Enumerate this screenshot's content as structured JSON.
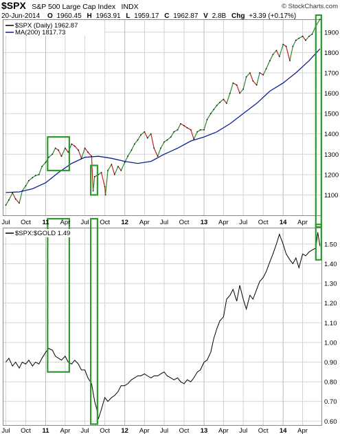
{
  "header": {
    "ticker": "$SPX",
    "name": "S&P 500 Large Cap Index",
    "exchange": "INDX",
    "date": "20-Jun-2014",
    "open_label": "O",
    "open": "1960.45",
    "high_label": "H",
    "high": "1963.91",
    "low_label": "L",
    "low": "1959.17",
    "close_label": "C",
    "close": "1962.87",
    "volume_label": "V",
    "volume": "2.8B",
    "change_label": "Chg",
    "change": "+3.39 (+0.17%)",
    "copyright": "© StockCharts.com"
  },
  "colors": {
    "price": "#000000",
    "up": "#2a8a2a",
    "down": "#c41f1f",
    "ma": "#0a1f8f",
    "ratio": "#000000",
    "highlight": "#2e9a2e",
    "grid": "#d4d4d4",
    "frame": "#888888"
  },
  "chart_data": [
    {
      "type": "line",
      "title": "$SPX (Daily) 1962.87",
      "series": [
        {
          "name": "$SPX (Daily) 1962.87",
          "x": [
            "2010-07-01",
            "2010-07-15",
            "2010-08-01",
            "2010-08-15",
            "2010-09-01",
            "2010-09-15",
            "2010-10-01",
            "2010-10-15",
            "2010-11-01",
            "2010-11-15",
            "2010-12-01",
            "2010-12-15",
            "2011-01-01",
            "2011-01-15",
            "2011-02-01",
            "2011-02-15",
            "2011-03-01",
            "2011-03-15",
            "2011-04-01",
            "2011-04-15",
            "2011-05-01",
            "2011-05-15",
            "2011-06-01",
            "2011-06-15",
            "2011-07-01",
            "2011-07-15",
            "2011-08-01",
            "2011-08-08",
            "2011-08-15",
            "2011-09-01",
            "2011-09-15",
            "2011-10-01",
            "2011-10-04",
            "2011-10-15",
            "2011-11-01",
            "2011-11-15",
            "2011-12-01",
            "2011-12-15",
            "2012-01-01",
            "2012-01-15",
            "2012-02-01",
            "2012-02-15",
            "2012-03-01",
            "2012-03-15",
            "2012-04-01",
            "2012-04-15",
            "2012-05-01",
            "2012-05-15",
            "2012-06-01",
            "2012-06-15",
            "2012-07-01",
            "2012-07-15",
            "2012-08-01",
            "2012-08-15",
            "2012-09-01",
            "2012-09-15",
            "2012-10-01",
            "2012-10-15",
            "2012-11-01",
            "2012-11-15",
            "2012-12-01",
            "2012-12-15",
            "2013-01-01",
            "2013-01-15",
            "2013-02-01",
            "2013-02-15",
            "2013-03-01",
            "2013-03-15",
            "2013-04-01",
            "2013-04-15",
            "2013-05-01",
            "2013-05-15",
            "2013-06-01",
            "2013-06-15",
            "2013-07-01",
            "2013-07-15",
            "2013-08-01",
            "2013-08-15",
            "2013-09-01",
            "2013-09-15",
            "2013-10-01",
            "2013-10-15",
            "2013-11-01",
            "2013-11-15",
            "2013-12-01",
            "2013-12-15",
            "2014-01-01",
            "2014-01-15",
            "2014-02-01",
            "2014-02-15",
            "2014-03-01",
            "2014-03-15",
            "2014-04-01",
            "2014-04-15",
            "2014-05-01",
            "2014-05-15",
            "2014-06-01",
            "2014-06-20"
          ],
          "y": [
            1050,
            1075,
            1110,
            1080,
            1060,
            1120,
            1145,
            1170,
            1185,
            1195,
            1200,
            1240,
            1260,
            1285,
            1300,
            1330,
            1320,
            1290,
            1330,
            1310,
            1350,
            1340,
            1320,
            1280,
            1330,
            1310,
            1290,
            1120,
            1190,
            1200,
            1210,
            1140,
            1100,
            1220,
            1250,
            1200,
            1240,
            1220,
            1260,
            1290,
            1320,
            1350,
            1370,
            1395,
            1410,
            1380,
            1400,
            1330,
            1290,
            1330,
            1360,
            1370,
            1385,
            1410,
            1420,
            1450,
            1440,
            1430,
            1420,
            1375,
            1410,
            1420,
            1420,
            1470,
            1500,
            1520,
            1540,
            1555,
            1570,
            1550,
            1600,
            1650,
            1640,
            1600,
            1620,
            1680,
            1700,
            1660,
            1640,
            1700,
            1690,
            1720,
            1760,
            1790,
            1810,
            1780,
            1840,
            1830,
            1760,
            1830,
            1860,
            1870,
            1880,
            1860,
            1880,
            1890,
            1930,
            1962.87
          ]
        },
        {
          "name": "MA(200) 1817.73",
          "x": [
            "2010-07-01",
            "2010-09-01",
            "2010-11-01",
            "2011-01-01",
            "2011-03-01",
            "2011-05-01",
            "2011-07-01",
            "2011-09-01",
            "2011-11-01",
            "2012-01-01",
            "2012-03-01",
            "2012-05-01",
            "2012-07-01",
            "2012-09-01",
            "2012-11-01",
            "2013-01-01",
            "2013-03-01",
            "2013-05-01",
            "2013-07-01",
            "2013-09-01",
            "2013-11-01",
            "2014-01-01",
            "2014-03-01",
            "2014-05-01",
            "2014-06-20"
          ],
          "y": [
            1112,
            1115,
            1130,
            1160,
            1210,
            1255,
            1285,
            1290,
            1280,
            1265,
            1255,
            1265,
            1300,
            1330,
            1365,
            1385,
            1410,
            1450,
            1500,
            1550,
            1610,
            1650,
            1700,
            1760,
            1817.73
          ]
        }
      ],
      "xlabel": "",
      "ylabel": "",
      "ylim": [
        1000,
        1960
      ],
      "yticks": [
        1100,
        1200,
        1300,
        1400,
        1500,
        1600,
        1700,
        1800,
        1900
      ],
      "xtick_labels": [
        "Jul",
        "Oct",
        "11",
        "Apr",
        "Jul",
        "Oct",
        "12",
        "Apr",
        "Jul",
        "Oct",
        "13",
        "Apr",
        "Jul",
        "Oct",
        "14",
        "Apr"
      ],
      "grid": true
    },
    {
      "type": "line",
      "title": "$SPX:$GOLD 1.49",
      "series": [
        {
          "name": "$SPX:$GOLD 1.49",
          "x": [
            "2010-07-01",
            "2010-07-15",
            "2010-08-01",
            "2010-08-15",
            "2010-09-01",
            "2010-09-15",
            "2010-10-01",
            "2010-10-15",
            "2010-11-01",
            "2010-11-15",
            "2010-12-01",
            "2010-12-15",
            "2011-01-01",
            "2011-01-15",
            "2011-02-01",
            "2011-02-15",
            "2011-03-01",
            "2011-03-15",
            "2011-04-01",
            "2011-04-15",
            "2011-05-01",
            "2011-05-15",
            "2011-06-01",
            "2011-06-15",
            "2011-07-01",
            "2011-07-15",
            "2011-08-01",
            "2011-08-15",
            "2011-08-25",
            "2011-09-01",
            "2011-09-15",
            "2011-10-01",
            "2011-10-15",
            "2011-11-01",
            "2011-11-15",
            "2011-12-01",
            "2011-12-15",
            "2012-01-01",
            "2012-01-15",
            "2012-02-01",
            "2012-02-15",
            "2012-03-01",
            "2012-03-15",
            "2012-04-01",
            "2012-04-15",
            "2012-05-01",
            "2012-05-15",
            "2012-06-01",
            "2012-06-15",
            "2012-07-01",
            "2012-07-15",
            "2012-08-01",
            "2012-08-15",
            "2012-09-01",
            "2012-09-15",
            "2012-10-01",
            "2012-10-15",
            "2012-11-01",
            "2012-11-15",
            "2012-12-01",
            "2012-12-15",
            "2013-01-01",
            "2013-01-15",
            "2013-02-01",
            "2013-02-15",
            "2013-03-01",
            "2013-03-15",
            "2013-04-01",
            "2013-04-15",
            "2013-05-01",
            "2013-05-15",
            "2013-06-01",
            "2013-06-15",
            "2013-07-01",
            "2013-07-15",
            "2013-08-01",
            "2013-08-15",
            "2013-09-01",
            "2013-09-15",
            "2013-10-01",
            "2013-10-15",
            "2013-11-01",
            "2013-11-15",
            "2013-12-01",
            "2013-12-15",
            "2014-01-01",
            "2014-01-15",
            "2014-02-01",
            "2014-02-15",
            "2014-03-01",
            "2014-03-15",
            "2014-04-01",
            "2014-04-15",
            "2014-05-01",
            "2014-05-15",
            "2014-06-01",
            "2014-06-10",
            "2014-06-20"
          ],
          "y": [
            0.9,
            0.92,
            0.88,
            0.9,
            0.87,
            0.9,
            0.89,
            0.91,
            0.88,
            0.9,
            0.89,
            0.92,
            0.95,
            0.97,
            0.96,
            0.93,
            0.92,
            0.91,
            0.93,
            0.9,
            0.89,
            0.91,
            0.89,
            0.86,
            0.86,
            0.82,
            0.79,
            0.7,
            0.66,
            0.61,
            0.66,
            0.72,
            0.7,
            0.72,
            0.73,
            0.75,
            0.78,
            0.78,
            0.79,
            0.81,
            0.82,
            0.83,
            0.83,
            0.84,
            0.83,
            0.82,
            0.83,
            0.83,
            0.84,
            0.85,
            0.83,
            0.82,
            0.81,
            0.82,
            0.8,
            0.79,
            0.81,
            0.8,
            0.82,
            0.85,
            0.86,
            0.9,
            0.91,
            0.95,
            1.02,
            1.07,
            1.11,
            1.13,
            1.22,
            1.24,
            1.27,
            1.21,
            1.29,
            1.22,
            1.17,
            1.24,
            1.22,
            1.27,
            1.31,
            1.33,
            1.36,
            1.41,
            1.45,
            1.5,
            1.55,
            1.5,
            1.45,
            1.42,
            1.4,
            1.43,
            1.38,
            1.45,
            1.44,
            1.46,
            1.47,
            1.48,
            1.56,
            1.49
          ]
        }
      ],
      "xlabel": "",
      "ylabel": "",
      "ylim": [
        0.58,
        1.58
      ],
      "yticks": [
        0.6,
        0.7,
        0.8,
        0.9,
        1.0,
        1.1,
        1.2,
        1.3,
        1.4,
        1.5
      ],
      "xtick_labels": [
        "Jul",
        "Oct",
        "11",
        "Apr",
        "Jul",
        "Oct",
        "12",
        "Apr",
        "Jul",
        "Oct",
        "13",
        "Apr",
        "Jul",
        "Oct",
        "14",
        "Apr"
      ],
      "grid": true
    }
  ],
  "annotations": {
    "highlight_boxes": [
      {
        "panel": 0,
        "x_start": "2011-01-10",
        "x_end": "2011-04-20",
        "y_low": 1220,
        "y_high": 1385
      },
      {
        "panel": 0,
        "x_start": "2011-07-28",
        "x_end": "2011-08-28",
        "y_low": 1100,
        "y_high": 1245
      },
      {
        "panel": 0,
        "x_start": "2014-06-01",
        "x_end": "2014-06-22",
        "y_low": 700,
        "y_high": 1990
      },
      {
        "panel": 1,
        "x_start": "2011-01-10",
        "x_end": "2011-04-20",
        "y_low": 0.85,
        "y_high": 2.8
      },
      {
        "panel": 1,
        "x_start": "2011-07-28",
        "x_end": "2011-08-28",
        "y_low": 0.585,
        "y_high": 2.2
      },
      {
        "panel": 1,
        "x_start": "2014-06-01",
        "x_end": "2014-06-22",
        "y_low": 1.42,
        "y_high": 1.6
      }
    ]
  }
}
